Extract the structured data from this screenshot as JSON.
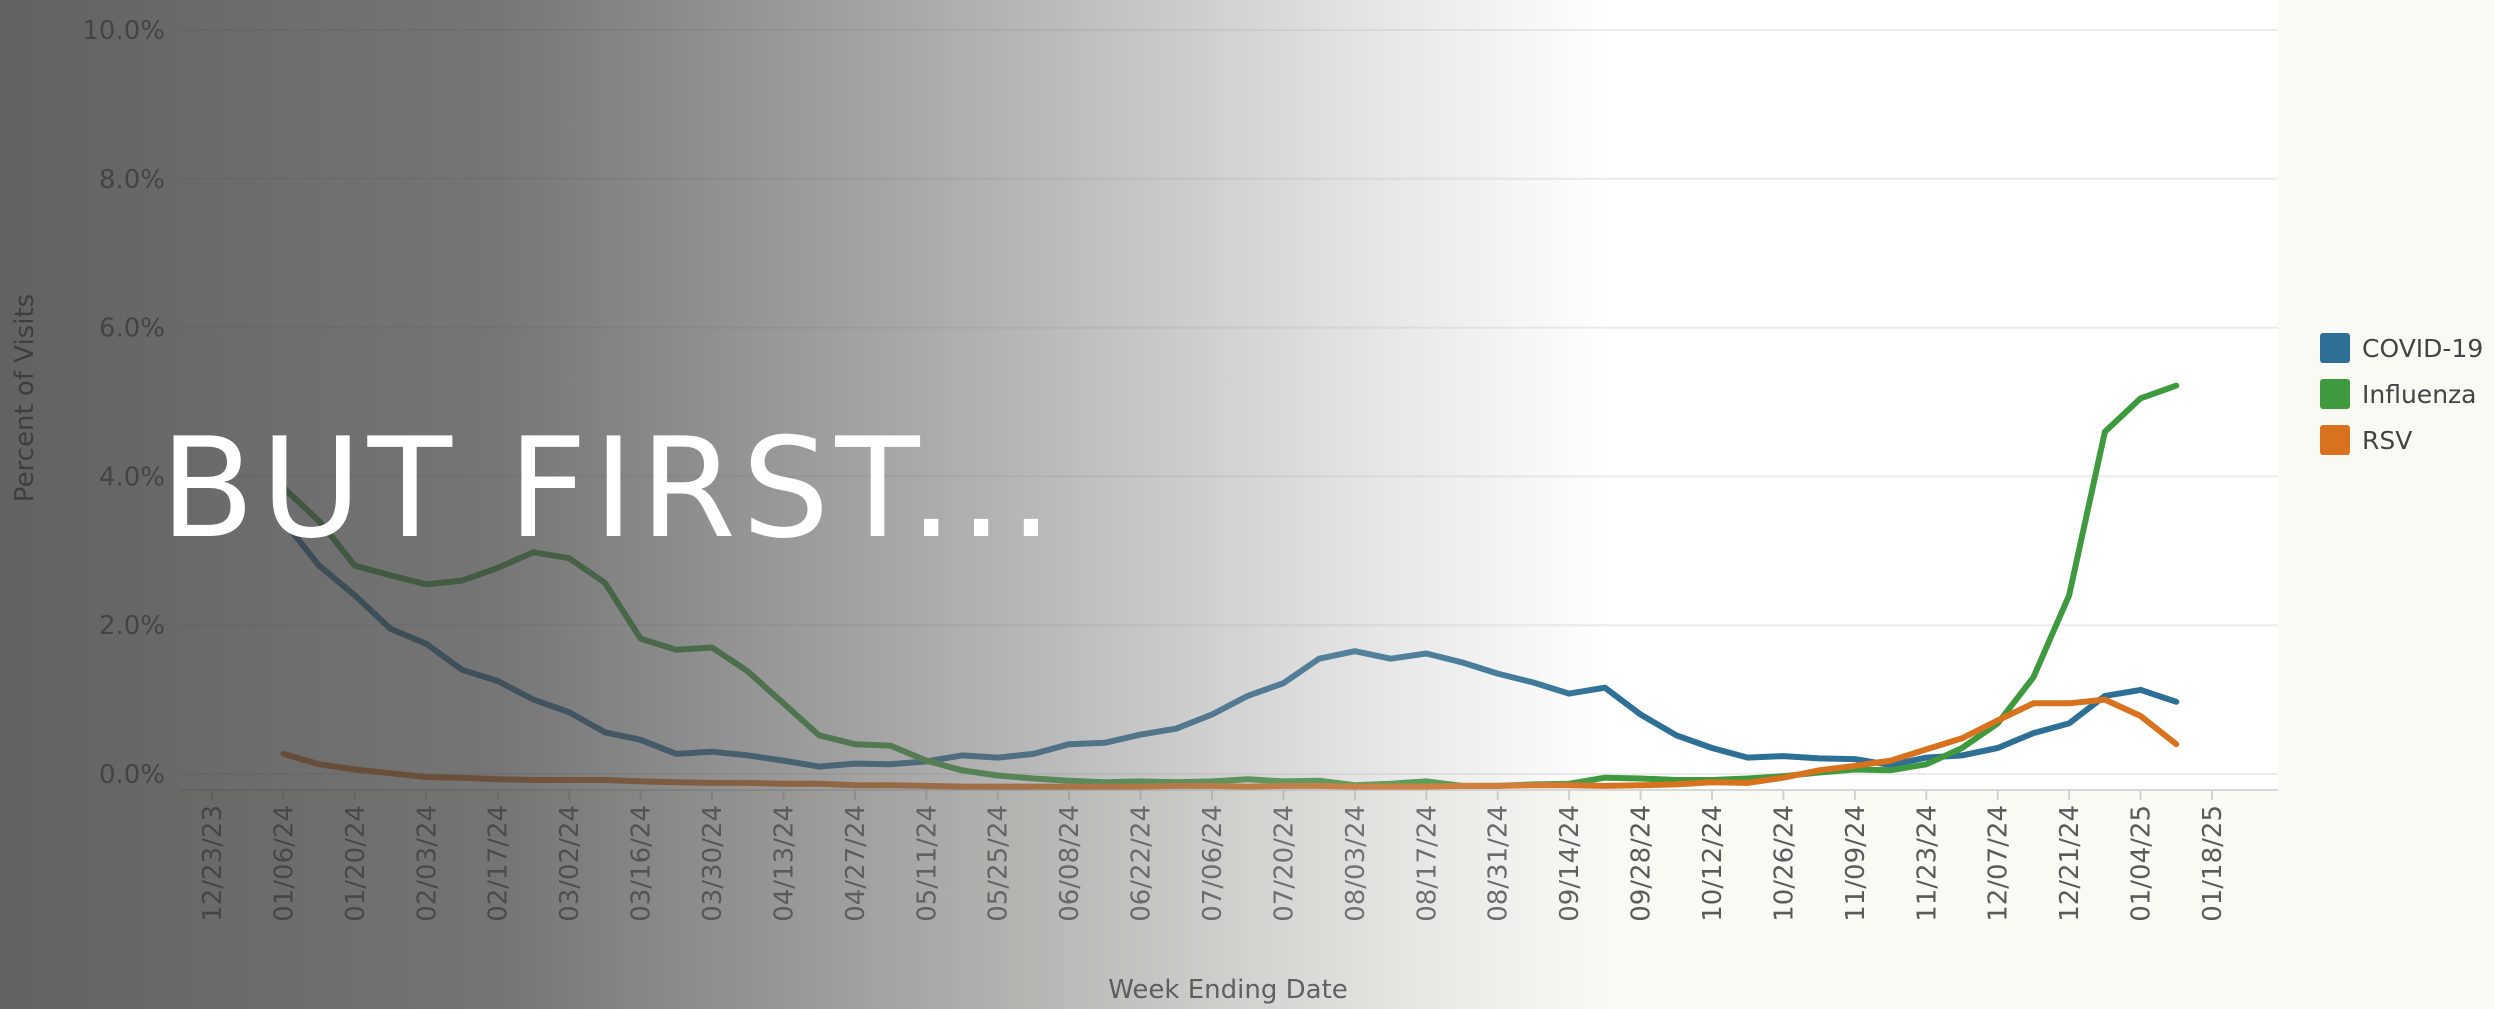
{
  "chart_data": {
    "type": "line",
    "xlabel": "Week Ending Date",
    "ylabel": "Percent of Visits",
    "ylim": [
      0,
      10
    ],
    "y_ticks": [
      "0.0%",
      "2.0%",
      "4.0%",
      "6.0%",
      "8.0%",
      "10.0%"
    ],
    "x_tick_labels": [
      "12/23/23",
      "01/06/24",
      "01/20/24",
      "02/03/24",
      "02/17/24",
      "03/02/24",
      "03/16/24",
      "03/30/24",
      "04/13/24",
      "04/27/24",
      "05/11/24",
      "05/25/24",
      "06/08/24",
      "06/22/24",
      "07/06/24",
      "07/20/24",
      "08/03/24",
      "08/17/24",
      "08/31/24",
      "09/14/24",
      "09/28/24",
      "10/12/24",
      "10/26/24",
      "11/09/24",
      "11/23/24",
      "12/07/24",
      "12/21/24",
      "01/04/25",
      "01/18/25"
    ],
    "x": [
      "01/06/24",
      "01/13/24",
      "01/20/24",
      "01/27/24",
      "02/03/24",
      "02/10/24",
      "02/17/24",
      "02/24/24",
      "03/02/24",
      "03/09/24",
      "03/16/24",
      "03/23/24",
      "03/30/24",
      "04/06/24",
      "04/13/24",
      "04/20/24",
      "04/27/24",
      "05/04/24",
      "05/11/24",
      "05/18/24",
      "05/25/24",
      "06/01/24",
      "06/08/24",
      "06/15/24",
      "06/22/24",
      "06/29/24",
      "07/06/24",
      "07/13/24",
      "07/20/24",
      "07/27/24",
      "08/03/24",
      "08/10/24",
      "08/17/24",
      "08/24/24",
      "08/31/24",
      "09/07/24",
      "09/14/24",
      "09/21/24",
      "09/28/24",
      "10/05/24",
      "10/12/24",
      "10/19/24",
      "10/26/24",
      "11/02/24",
      "11/09/24",
      "11/16/24",
      "11/23/24",
      "11/30/24",
      "12/07/24",
      "12/14/24",
      "12/21/24",
      "12/28/24",
      "01/04/25",
      "01/11/25"
    ],
    "series": [
      {
        "name": "COVID-19",
        "color": "#2e6f96",
        "values": [
          3.4,
          2.8,
          2.4,
          1.95,
          1.75,
          1.4,
          1.25,
          1.0,
          0.83,
          0.56,
          0.46,
          0.27,
          0.3,
          0.25,
          0.18,
          0.1,
          0.14,
          0.13,
          0.17,
          0.25,
          0.22,
          0.27,
          0.4,
          0.42,
          0.53,
          0.61,
          0.8,
          1.05,
          1.22,
          1.55,
          1.65,
          1.55,
          1.62,
          1.5,
          1.35,
          1.23,
          1.08,
          1.16,
          0.8,
          0.52,
          0.35,
          0.22,
          0.24,
          0.21,
          0.2,
          0.12,
          0.22,
          0.25,
          0.35,
          0.55,
          0.68,
          1.05,
          1.13,
          0.97
        ]
      },
      {
        "name": "Influenza",
        "color": "#3f9a3f",
        "values": [
          3.85,
          3.4,
          2.8,
          2.67,
          2.55,
          2.6,
          2.77,
          2.98,
          2.9,
          2.57,
          1.82,
          1.67,
          1.7,
          1.38,
          0.95,
          0.52,
          0.4,
          0.38,
          0.18,
          0.05,
          -0.02,
          -0.06,
          -0.09,
          -0.11,
          -0.1,
          -0.11,
          -0.1,
          -0.07,
          -0.1,
          -0.09,
          -0.15,
          -0.13,
          -0.1,
          -0.16,
          -0.16,
          -0.14,
          -0.13,
          -0.05,
          -0.06,
          -0.08,
          -0.08,
          -0.06,
          -0.03,
          0.02,
          0.06,
          0.05,
          0.13,
          0.35,
          0.68,
          1.3,
          2.4,
          4.6,
          5.05,
          5.22
        ]
      },
      {
        "name": "RSV",
        "color": "#d8721f",
        "values": [
          0.27,
          0.13,
          0.06,
          0.01,
          -0.04,
          -0.05,
          -0.07,
          -0.08,
          -0.08,
          -0.08,
          -0.1,
          -0.11,
          -0.12,
          -0.12,
          -0.13,
          -0.13,
          -0.15,
          -0.15,
          -0.16,
          -0.17,
          -0.17,
          -0.17,
          -0.17,
          -0.17,
          -0.17,
          -0.16,
          -0.16,
          -0.17,
          -0.16,
          -0.16,
          -0.17,
          -0.17,
          -0.17,
          -0.16,
          -0.16,
          -0.15,
          -0.15,
          -0.16,
          -0.15,
          -0.14,
          -0.11,
          -0.12,
          -0.05,
          0.05,
          0.11,
          0.18,
          0.33,
          0.48,
          0.72,
          0.95,
          0.95,
          1.0,
          0.78,
          0.4
        ]
      }
    ]
  },
  "overlay": {
    "headline": "BUT FIRST..."
  }
}
